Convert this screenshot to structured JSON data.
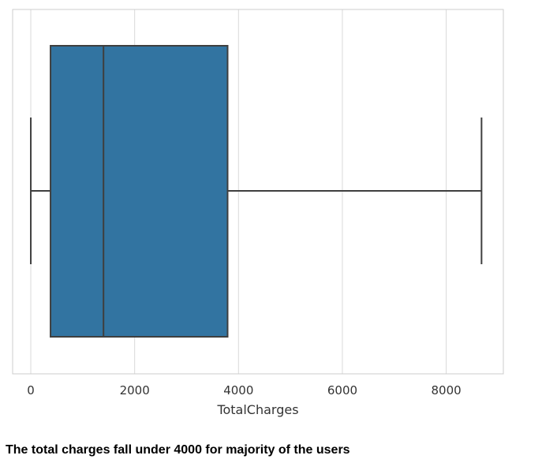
{
  "chart_data": {
    "type": "boxplot",
    "orientation": "horizontal",
    "xlabel": "TotalCharges",
    "xlim": [
      -350,
      9100
    ],
    "xticks": [
      0,
      2000,
      4000,
      6000,
      8000
    ],
    "tick_labels": [
      "0",
      "2000",
      "4000",
      "6000",
      "8000"
    ],
    "grid": true,
    "box": {
      "whisker_low": 0,
      "q1": 380,
      "median": 1400,
      "q3": 3790,
      "whisker_high": 8680
    },
    "colors": {
      "box_fill": "#3274a1",
      "box_edge": "#3f3f3f",
      "grid": "#d9d9d9",
      "frame": "#cccccc"
    }
  },
  "caption": "The total charges fall under 4000 for majority of the users"
}
